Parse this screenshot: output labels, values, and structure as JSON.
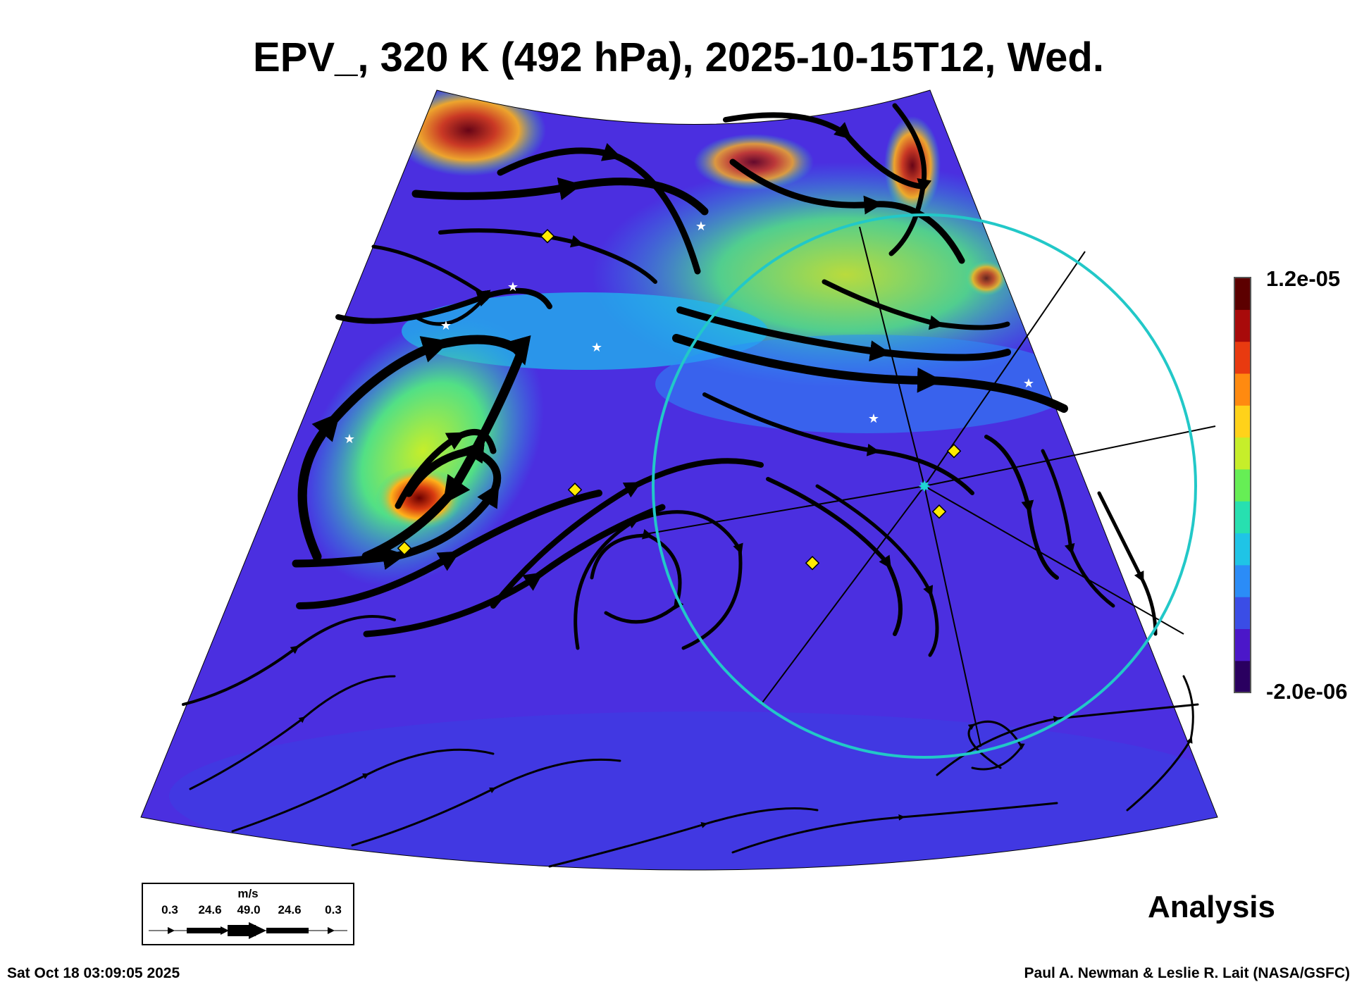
{
  "title": "EPV_, 320 K (492 hPa), 2025-10-15T12, Wed.",
  "colorbar": {
    "max_label": "1.2e-05",
    "min_label": "-2.0e-06",
    "colors": [
      "#2a0060",
      "#4b17c9",
      "#3a4de6",
      "#2b8cf7",
      "#1fc4e6",
      "#27e0b0",
      "#66ee55",
      "#c6ee2a",
      "#ffd21a",
      "#ff8a10",
      "#e83a10",
      "#a80a0a",
      "#5c0000"
    ]
  },
  "wind_legend": {
    "unit": "m/s",
    "values": [
      "0.3",
      "24.6",
      "49.0",
      "24.6",
      "0.3"
    ]
  },
  "analysis_label": "Analysis",
  "timestamp": "Sat Oct 18 03:09:05 2025",
  "credit": "Paul A. Newman & Leslie R. Lait (NASA/GSFC)",
  "map": {
    "field_background": "#4b2fe0",
    "range_ring_color": "#22c8c8",
    "marker_color": "#ffea00",
    "star_color": "#ffffff",
    "center_marker_color": "#1fd4d4"
  }
}
